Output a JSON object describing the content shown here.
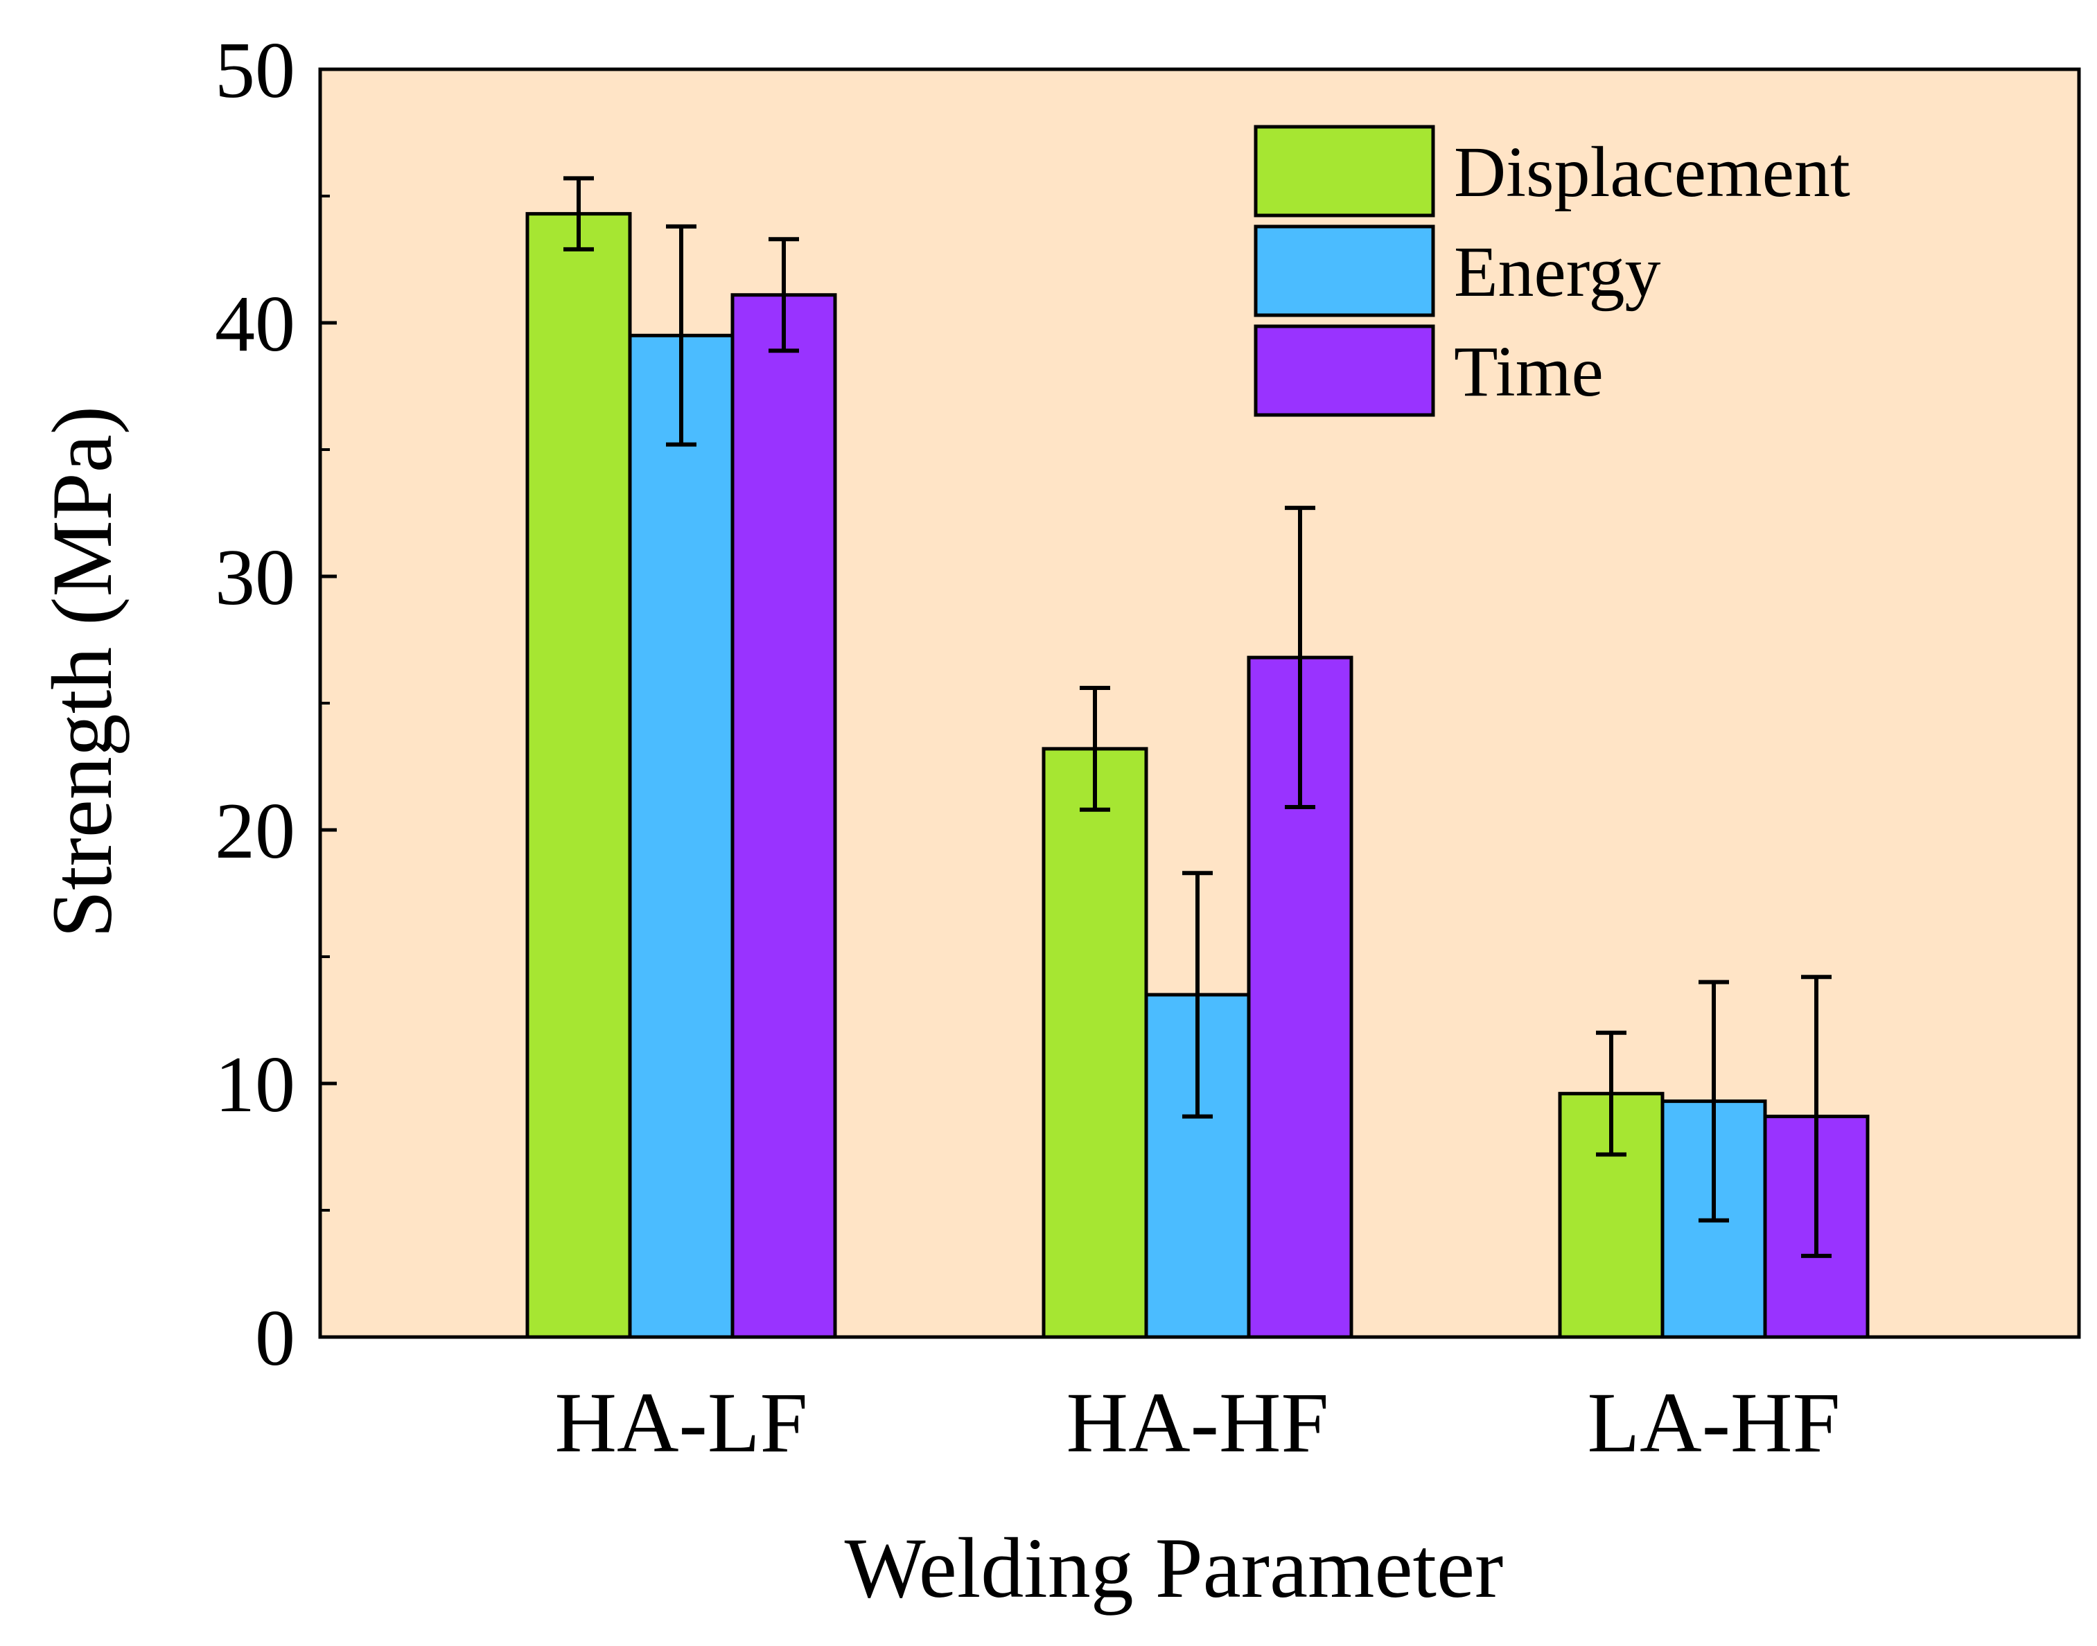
{
  "chart_data": {
    "type": "bar",
    "title": "",
    "xlabel": "Welding Parameter",
    "ylabel": "Strength (MPa)",
    "ylim": [
      0,
      50
    ],
    "yticks": [
      "0",
      "10",
      "20",
      "30",
      "40",
      "50"
    ],
    "categories": [
      "HA-LF",
      "HA-HF",
      "LA-HF"
    ],
    "series": [
      {
        "name": "Displacement",
        "color": "#a6e632",
        "values": [
          44.3,
          23.2,
          9.6
        ],
        "errors": [
          1.4,
          2.4,
          2.4
        ]
      },
      {
        "name": "Energy",
        "color": "#4bbcff",
        "values": [
          39.5,
          13.5,
          9.3
        ],
        "errors": [
          4.3,
          4.8,
          4.7
        ]
      },
      {
        "name": "Time",
        "color": "#9933ff",
        "values": [
          41.1,
          26.8,
          8.7
        ],
        "errors": [
          2.2,
          5.9,
          5.5
        ]
      }
    ],
    "legend_position": "top-right",
    "plot_background": "#ffe4c6",
    "grid": false
  }
}
